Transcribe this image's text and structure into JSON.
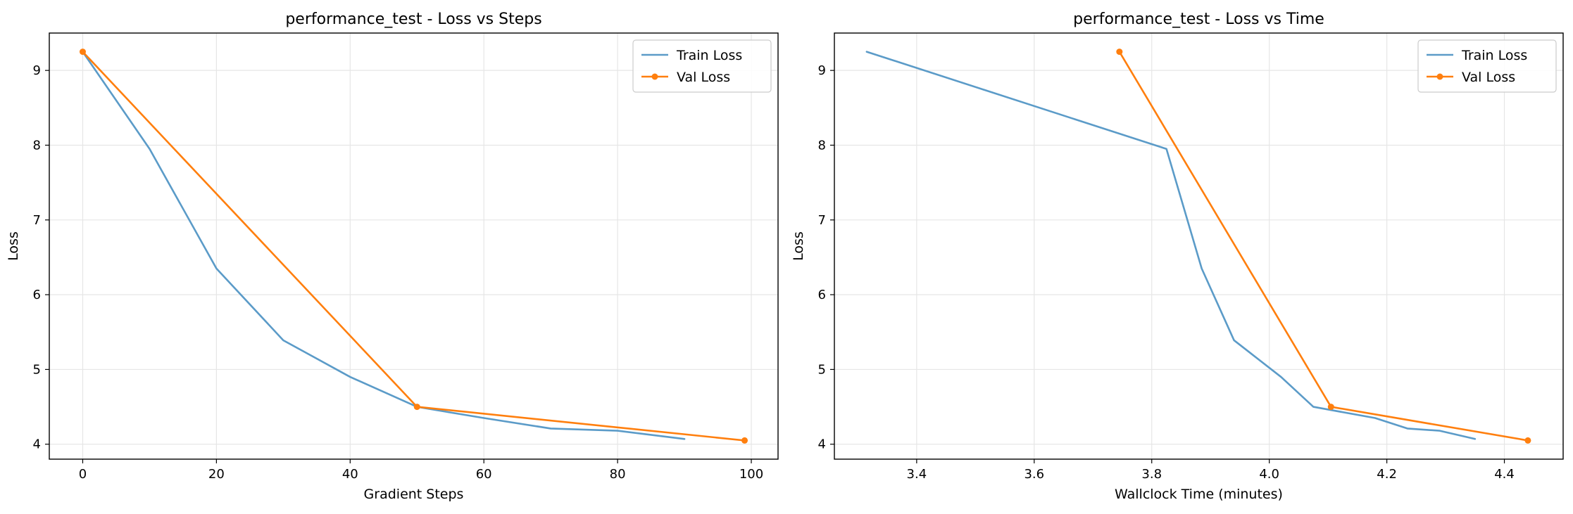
{
  "chart_data": [
    {
      "type": "line",
      "title": "performance_test - Loss vs Steps",
      "xlabel": "Gradient Steps",
      "ylabel": "Loss",
      "xlim": [
        -5,
        104
      ],
      "ylim": [
        3.8,
        9.5
      ],
      "xticks": [
        0,
        20,
        40,
        60,
        80,
        100
      ],
      "yticks": [
        4,
        5,
        6,
        7,
        8,
        9
      ],
      "grid": true,
      "legend": "top-right",
      "series": [
        {
          "name": "Train Loss",
          "color": "#5b9bc8",
          "marker": false,
          "x": [
            0,
            10,
            20,
            30,
            40,
            50,
            60,
            70,
            80,
            90
          ],
          "y": [
            9.25,
            7.95,
            6.35,
            5.39,
            4.9,
            4.5,
            4.35,
            4.21,
            4.18,
            4.07
          ]
        },
        {
          "name": "Val Loss",
          "color": "#ff7f0e",
          "marker": true,
          "x": [
            0,
            50,
            99
          ],
          "y": [
            9.25,
            4.5,
            4.05
          ]
        }
      ]
    },
    {
      "type": "line",
      "title": "performance_test - Loss vs Time",
      "xlabel": "Wallclock Time (minutes)",
      "ylabel": "Loss",
      "xlim": [
        3.26,
        4.5
      ],
      "ylim": [
        3.8,
        9.5
      ],
      "xticks": [
        3.4,
        3.6,
        3.8,
        4.0,
        4.2,
        4.4
      ],
      "xtick_labels": [
        "3.4",
        "3.6",
        "3.8",
        "4.0",
        "4.2",
        "4.4"
      ],
      "yticks": [
        4,
        5,
        6,
        7,
        8,
        9
      ],
      "grid": true,
      "legend": "top-right",
      "series": [
        {
          "name": "Train Loss",
          "color": "#5b9bc8",
          "marker": false,
          "x": [
            3.315,
            3.825,
            3.885,
            3.94,
            4.02,
            4.075,
            4.18,
            4.235,
            4.29,
            4.35
          ],
          "y": [
            9.25,
            7.95,
            6.35,
            5.39,
            4.9,
            4.5,
            4.35,
            4.21,
            4.18,
            4.07
          ]
        },
        {
          "name": "Val Loss",
          "color": "#ff7f0e",
          "marker": true,
          "x": [
            3.745,
            4.105,
            4.44
          ],
          "y": [
            9.25,
            4.5,
            4.05
          ]
        }
      ]
    }
  ]
}
